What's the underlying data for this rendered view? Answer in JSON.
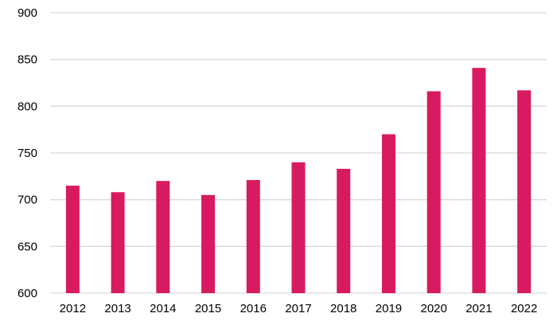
{
  "chart_data": {
    "type": "bar",
    "title": "",
    "xlabel": "",
    "ylabel": "",
    "categories": [
      "2012",
      "2013",
      "2014",
      "2015",
      "2016",
      "2017",
      "2018",
      "2019",
      "2020",
      "2021",
      "2022"
    ],
    "values": [
      715,
      708,
      720,
      705,
      721,
      740,
      733,
      770,
      816,
      841,
      817
    ],
    "ylim": [
      600,
      900
    ],
    "yticks": [
      600,
      650,
      700,
      750,
      800,
      850,
      900
    ],
    "grid": true,
    "legend": "none",
    "colors": {
      "bar": "#D81B60",
      "grid": "#D9D9D9"
    }
  }
}
